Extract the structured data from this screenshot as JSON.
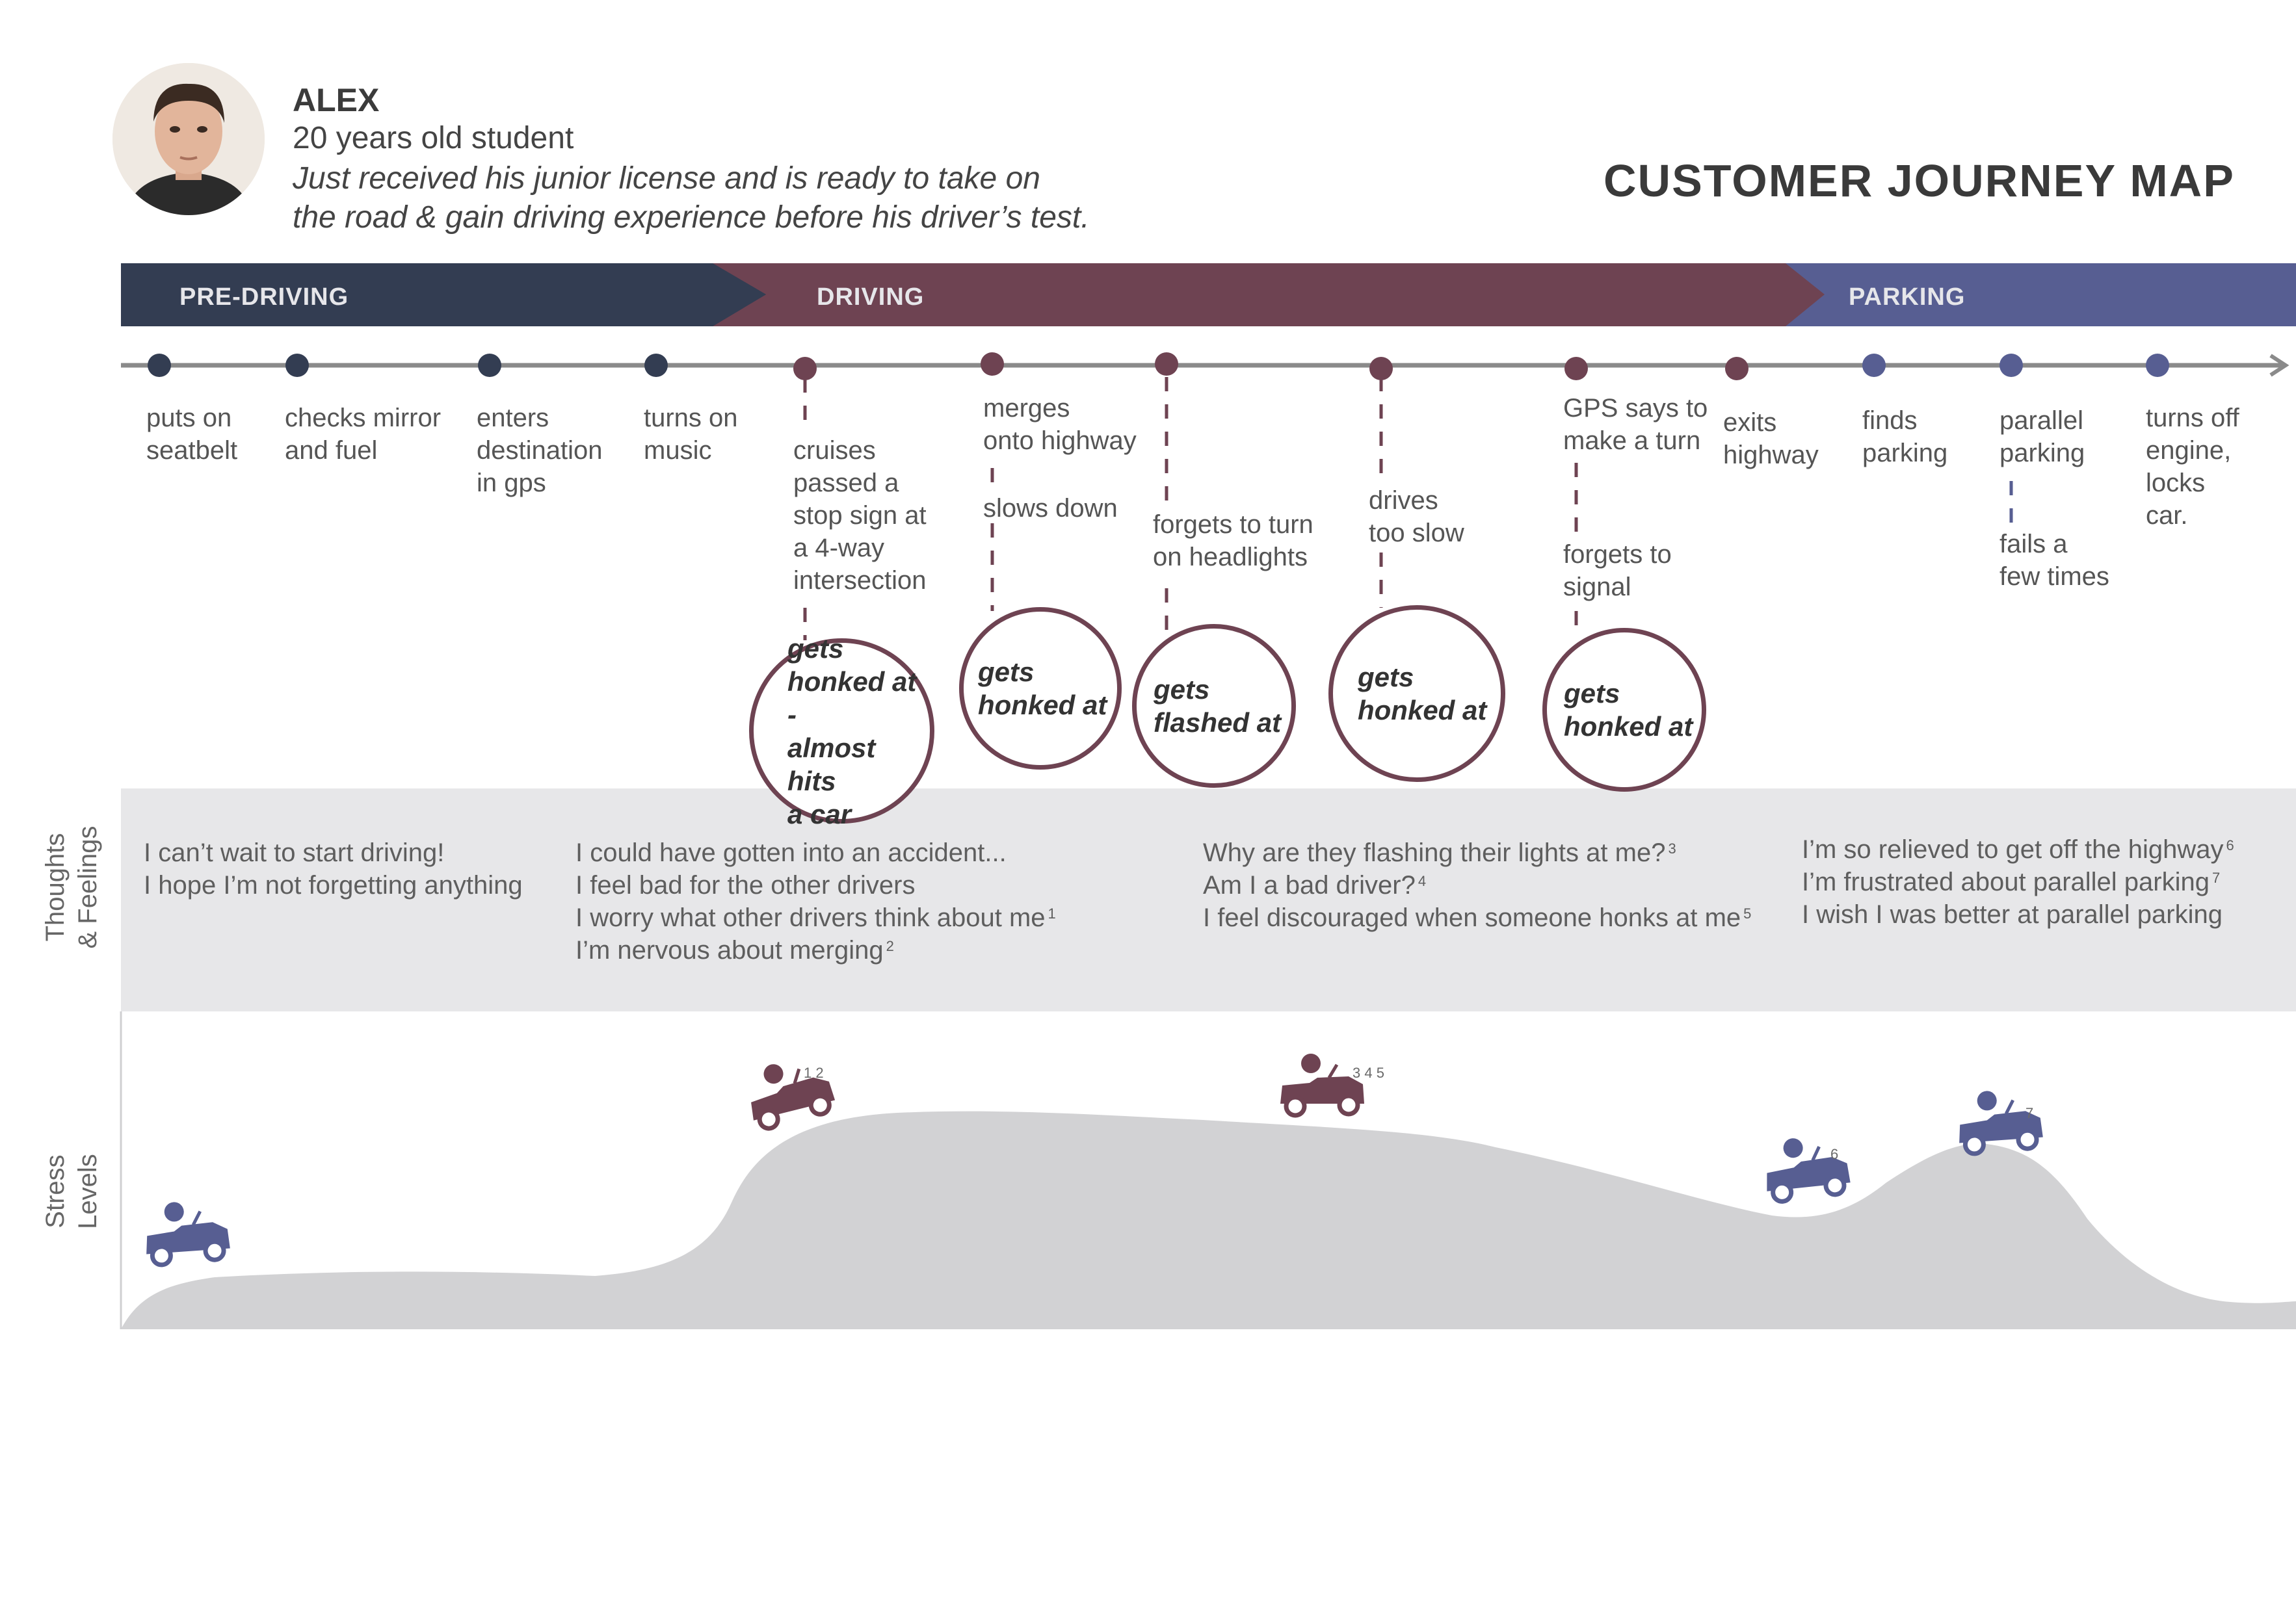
{
  "persona": {
    "name": "ALEX",
    "age_line": "20 years old student",
    "description": [
      "Just received his junior license and is ready to take on",
      "the road & gain driving experience before his driver’s test."
    ]
  },
  "title": "CUSTOMER JOURNEY MAP",
  "stages": [
    {
      "label": "PRE-DRIVING",
      "color": "#333d52"
    },
    {
      "label": "DRIVING",
      "color": "#6e4352"
    },
    {
      "label": "PARKING",
      "color": "#575e92"
    }
  ],
  "steps": [
    {
      "id": "s1",
      "text": "puts on\nseatbelt",
      "stage": "PRE-DRIVING"
    },
    {
      "id": "s2",
      "text": "checks mirror\nand fuel",
      "stage": "PRE-DRIVING"
    },
    {
      "id": "s3",
      "text": "enters\ndestination\nin gps",
      "stage": "PRE-DRIVING"
    },
    {
      "id": "s4",
      "text": "turns on\nmusic",
      "stage": "PRE-DRIVING"
    },
    {
      "id": "s5",
      "text": "cruises\npassed a\nstop sign at\na 4-way\nintersection",
      "stage": "DRIVING"
    },
    {
      "id": "s6",
      "text": "merges\nonto highway",
      "sub": "slows down",
      "stage": "DRIVING"
    },
    {
      "id": "s7",
      "text": "forgets to turn\non headlights",
      "stage": "DRIVING"
    },
    {
      "id": "s8",
      "text": "drives\ntoo slow",
      "stage": "DRIVING"
    },
    {
      "id": "s9",
      "text": "GPS says to\nmake a turn",
      "sub": "forgets to\nsignal",
      "stage": "DRIVING"
    },
    {
      "id": "s10",
      "text": "exits\nhighway",
      "stage": "DRIVING"
    },
    {
      "id": "s11",
      "text": "finds\nparking",
      "stage": "PARKING"
    },
    {
      "id": "s12",
      "text": "parallel\nparking",
      "sub": "fails a\nfew times",
      "stage": "PARKING"
    },
    {
      "id": "s13",
      "text": "turns off\nengine,\nlocks\ncar.",
      "stage": "PARKING"
    }
  ],
  "pain_points": [
    {
      "text": "gets\nhonked at -\nalmost hits\na car"
    },
    {
      "text": "gets\nhonked at"
    },
    {
      "text": "gets\nflashed at"
    },
    {
      "text": "gets\nhonked at"
    },
    {
      "text": "gets\nhonked at"
    }
  ],
  "thoughts_label": [
    "Thoughts",
    "& Feelings"
  ],
  "thoughts": [
    {
      "lines": [
        {
          "t": "I can’t wait to start driving!",
          "n": ""
        },
        {
          "t": "I hope I’m not forgetting anything",
          "n": ""
        }
      ]
    },
    {
      "lines": [
        {
          "t": "I could have gotten into an accident...",
          "n": ""
        },
        {
          "t": "I feel bad for the other drivers",
          "n": ""
        },
        {
          "t": "I worry what other drivers think about me",
          "n": "1"
        },
        {
          "t": "I’m nervous about merging",
          "n": "2"
        }
      ]
    },
    {
      "lines": [
        {
          "t": "Why are they flashing their lights at me?",
          "n": "3"
        },
        {
          "t": "Am I a bad driver?",
          "n": "4"
        },
        {
          "t": "I feel discouraged when someone honks at me",
          "n": "5"
        }
      ]
    },
    {
      "lines": [
        {
          "t": "I’m so relieved to get off the highway",
          "n": "6"
        },
        {
          "t": "I’m frustrated about parallel parking",
          "n": "7"
        },
        {
          "t": "I wish I was better at parallel parking",
          "n": ""
        }
      ]
    }
  ],
  "stress_label": [
    "Stress",
    "Levels"
  ],
  "stress_markers": [
    {
      "note": "",
      "color": "#575e92"
    },
    {
      "note": "1 2",
      "color": "#6e4352"
    },
    {
      "note": "3 4 5",
      "color": "#6e4352"
    },
    {
      "note": "6",
      "color": "#575e92"
    },
    {
      "note": "7",
      "color": "#575e92"
    }
  ],
  "colors": {
    "pre": "#333d52",
    "driving": "#6e4352",
    "parking": "#575e92",
    "band": "#e7e7e9",
    "curve": "#d2d2d4"
  }
}
